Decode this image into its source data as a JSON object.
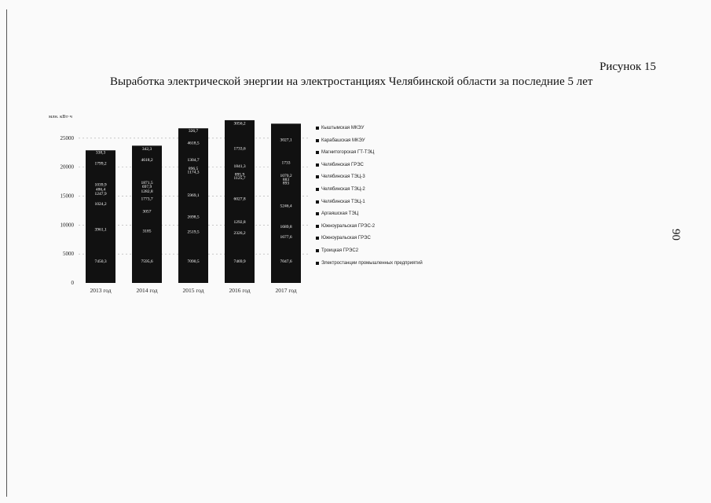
{
  "figure_label": "Рисунок 15",
  "page_number": "90",
  "chart_data": {
    "type": "bar",
    "stacked": true,
    "title": "Выработка электрической энергии на электростанциях Челябинской области за последние 5 лет",
    "ylabel": "млн. кВт·ч",
    "xlabel": "",
    "ylim": [
      0,
      30000
    ],
    "yticks": [
      "0",
      "5000",
      "10000",
      "15000",
      "20000",
      "25000"
    ],
    "categories": [
      "2013 год",
      "2014 год",
      "2015 год",
      "2016 год",
      "2017 год"
    ],
    "legend": [
      "Кыштымская МКЭУ",
      "Карабашская МКЭУ",
      "Магнитогорская ГТ-ТЭЦ",
      "Челябинская ГРЭС",
      "Челябинская ТЭЦ-3",
      "Челябинская ТЭЦ-2",
      "Челябинская ТЭЦ-1",
      "Аргаяшская ТЭЦ",
      "Южноуральская ГРЭС-2",
      "Южноуральская ГРЭС",
      "Троицкая ГРЭС2",
      "Электростанции промышленных предприятий"
    ],
    "legend_placement": "right",
    "bar_color": "#111111",
    "label_color": "#ffffff",
    "totals": [
      22900,
      23700,
      26700,
      28100,
      27500
    ],
    "segment_labels": [
      [
        {
          "text": "7450,3",
          "y": 3800
        },
        {
          "text": "3961,1",
          "y": 9300
        },
        {
          "text": "1024,2",
          "y": 13700
        },
        {
          "text": "1247,9",
          "y": 15500
        },
        {
          "text": "486,4",
          "y": 16200
        },
        {
          "text": "1039,9",
          "y": 17000
        },
        {
          "text": "1799,2",
          "y": 20700
        },
        {
          "text": "338,3",
          "y": 22600
        }
      ],
      [
        {
          "text": "7595,6",
          "y": 3800
        },
        {
          "text": "3185",
          "y": 9000
        },
        {
          "text": "3057",
          "y": 12400
        },
        {
          "text": "1773,7",
          "y": 14600
        },
        {
          "text": "1282,8",
          "y": 15900
        },
        {
          "text": "697,9",
          "y": 16700
        },
        {
          "text": "1871,5",
          "y": 17400
        },
        {
          "text": "4618,2",
          "y": 21300
        },
        {
          "text": "342,3",
          "y": 23200
        }
      ],
      [
        {
          "text": "7090,5",
          "y": 3800
        },
        {
          "text": "2519,5",
          "y": 8900
        },
        {
          "text": "2698,5",
          "y": 11500
        },
        {
          "text": "5969,1",
          "y": 15200
        },
        {
          "text": "1174,3",
          "y": 19200
        },
        {
          "text": "896,5",
          "y": 19800
        },
        {
          "text": "1304,7",
          "y": 21300
        },
        {
          "text": "4618,5",
          "y": 24200
        },
        {
          "text": "326,7",
          "y": 26300
        }
      ],
      [
        {
          "text": "7469,9",
          "y": 3800
        },
        {
          "text": "2326,2",
          "y": 8700
        },
        {
          "text": "1292,8",
          "y": 10600
        },
        {
          "text": "6027,8",
          "y": 14600
        },
        {
          "text": "1125,7",
          "y": 18200
        },
        {
          "text": "895,9",
          "y": 18800
        },
        {
          "text": "1841,3",
          "y": 20200
        },
        {
          "text": "1733,6",
          "y": 23300
        },
        {
          "text": "3056,2",
          "y": 27600
        }
      ],
      [
        {
          "text": "7047,6",
          "y": 3800
        },
        {
          "text": "1677,6",
          "y": 8000
        },
        {
          "text": "1689,8",
          "y": 9800
        },
        {
          "text": "5246,4",
          "y": 13400
        },
        {
          "text": "893",
          "y": 17300
        },
        {
          "text": "883",
          "y": 17900
        },
        {
          "text": "1070,2",
          "y": 18600
        },
        {
          "text": "1733",
          "y": 20800
        },
        {
          "text": "3027,1",
          "y": 24800
        }
      ]
    ]
  }
}
